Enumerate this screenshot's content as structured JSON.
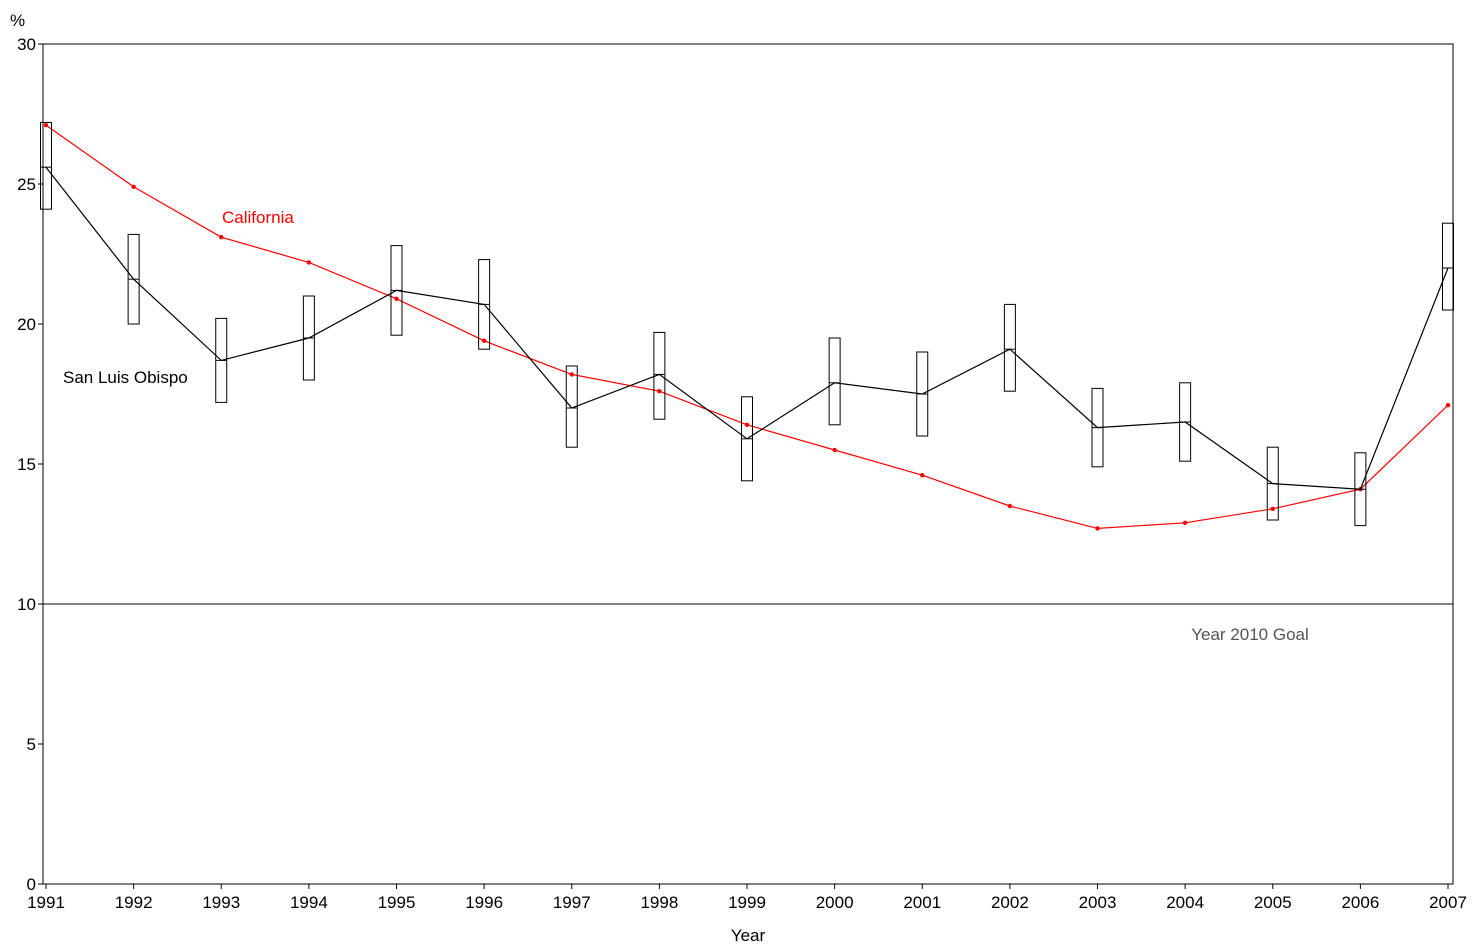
{
  "chart_data": {
    "type": "line",
    "xlabel": "Year",
    "ylabel": "%",
    "ylim": [
      0,
      30
    ],
    "yticks": [
      0,
      5,
      10,
      15,
      20,
      25,
      30
    ],
    "categories": [
      "1991",
      "1992",
      "1993",
      "1994",
      "1995",
      "1996",
      "1997",
      "1998",
      "1999",
      "2000",
      "2001",
      "2002",
      "2003",
      "2004",
      "2005",
      "2006",
      "2007"
    ],
    "grid": false,
    "series": [
      {
        "name": "San Luis Obispo",
        "color": "#000000",
        "values": [
          25.6,
          21.6,
          18.7,
          19.5,
          21.2,
          20.7,
          17.0,
          18.2,
          15.9,
          17.9,
          17.5,
          19.1,
          16.3,
          16.5,
          14.3,
          14.1,
          22.0
        ],
        "ci_low": [
          24.1,
          20.0,
          17.2,
          18.0,
          19.6,
          19.1,
          15.6,
          16.6,
          14.4,
          16.4,
          16.0,
          17.6,
          14.9,
          15.1,
          13.0,
          12.8,
          20.5
        ],
        "ci_high": [
          27.2,
          23.2,
          20.2,
          21.0,
          22.8,
          22.3,
          18.5,
          19.7,
          17.4,
          19.5,
          19.0,
          20.7,
          17.7,
          17.9,
          15.6,
          15.4,
          23.6
        ]
      },
      {
        "name": "California",
        "color": "#ff0000",
        "values": [
          27.1,
          24.9,
          23.1,
          22.2,
          20.9,
          19.4,
          18.2,
          17.6,
          16.4,
          15.5,
          14.6,
          13.5,
          12.7,
          12.9,
          13.4,
          14.1,
          17.1
        ]
      }
    ],
    "reference_lines": [
      {
        "y": 10,
        "label": "Year 2010 Goal",
        "color": "#000000",
        "label_color": "#555555"
      }
    ]
  }
}
